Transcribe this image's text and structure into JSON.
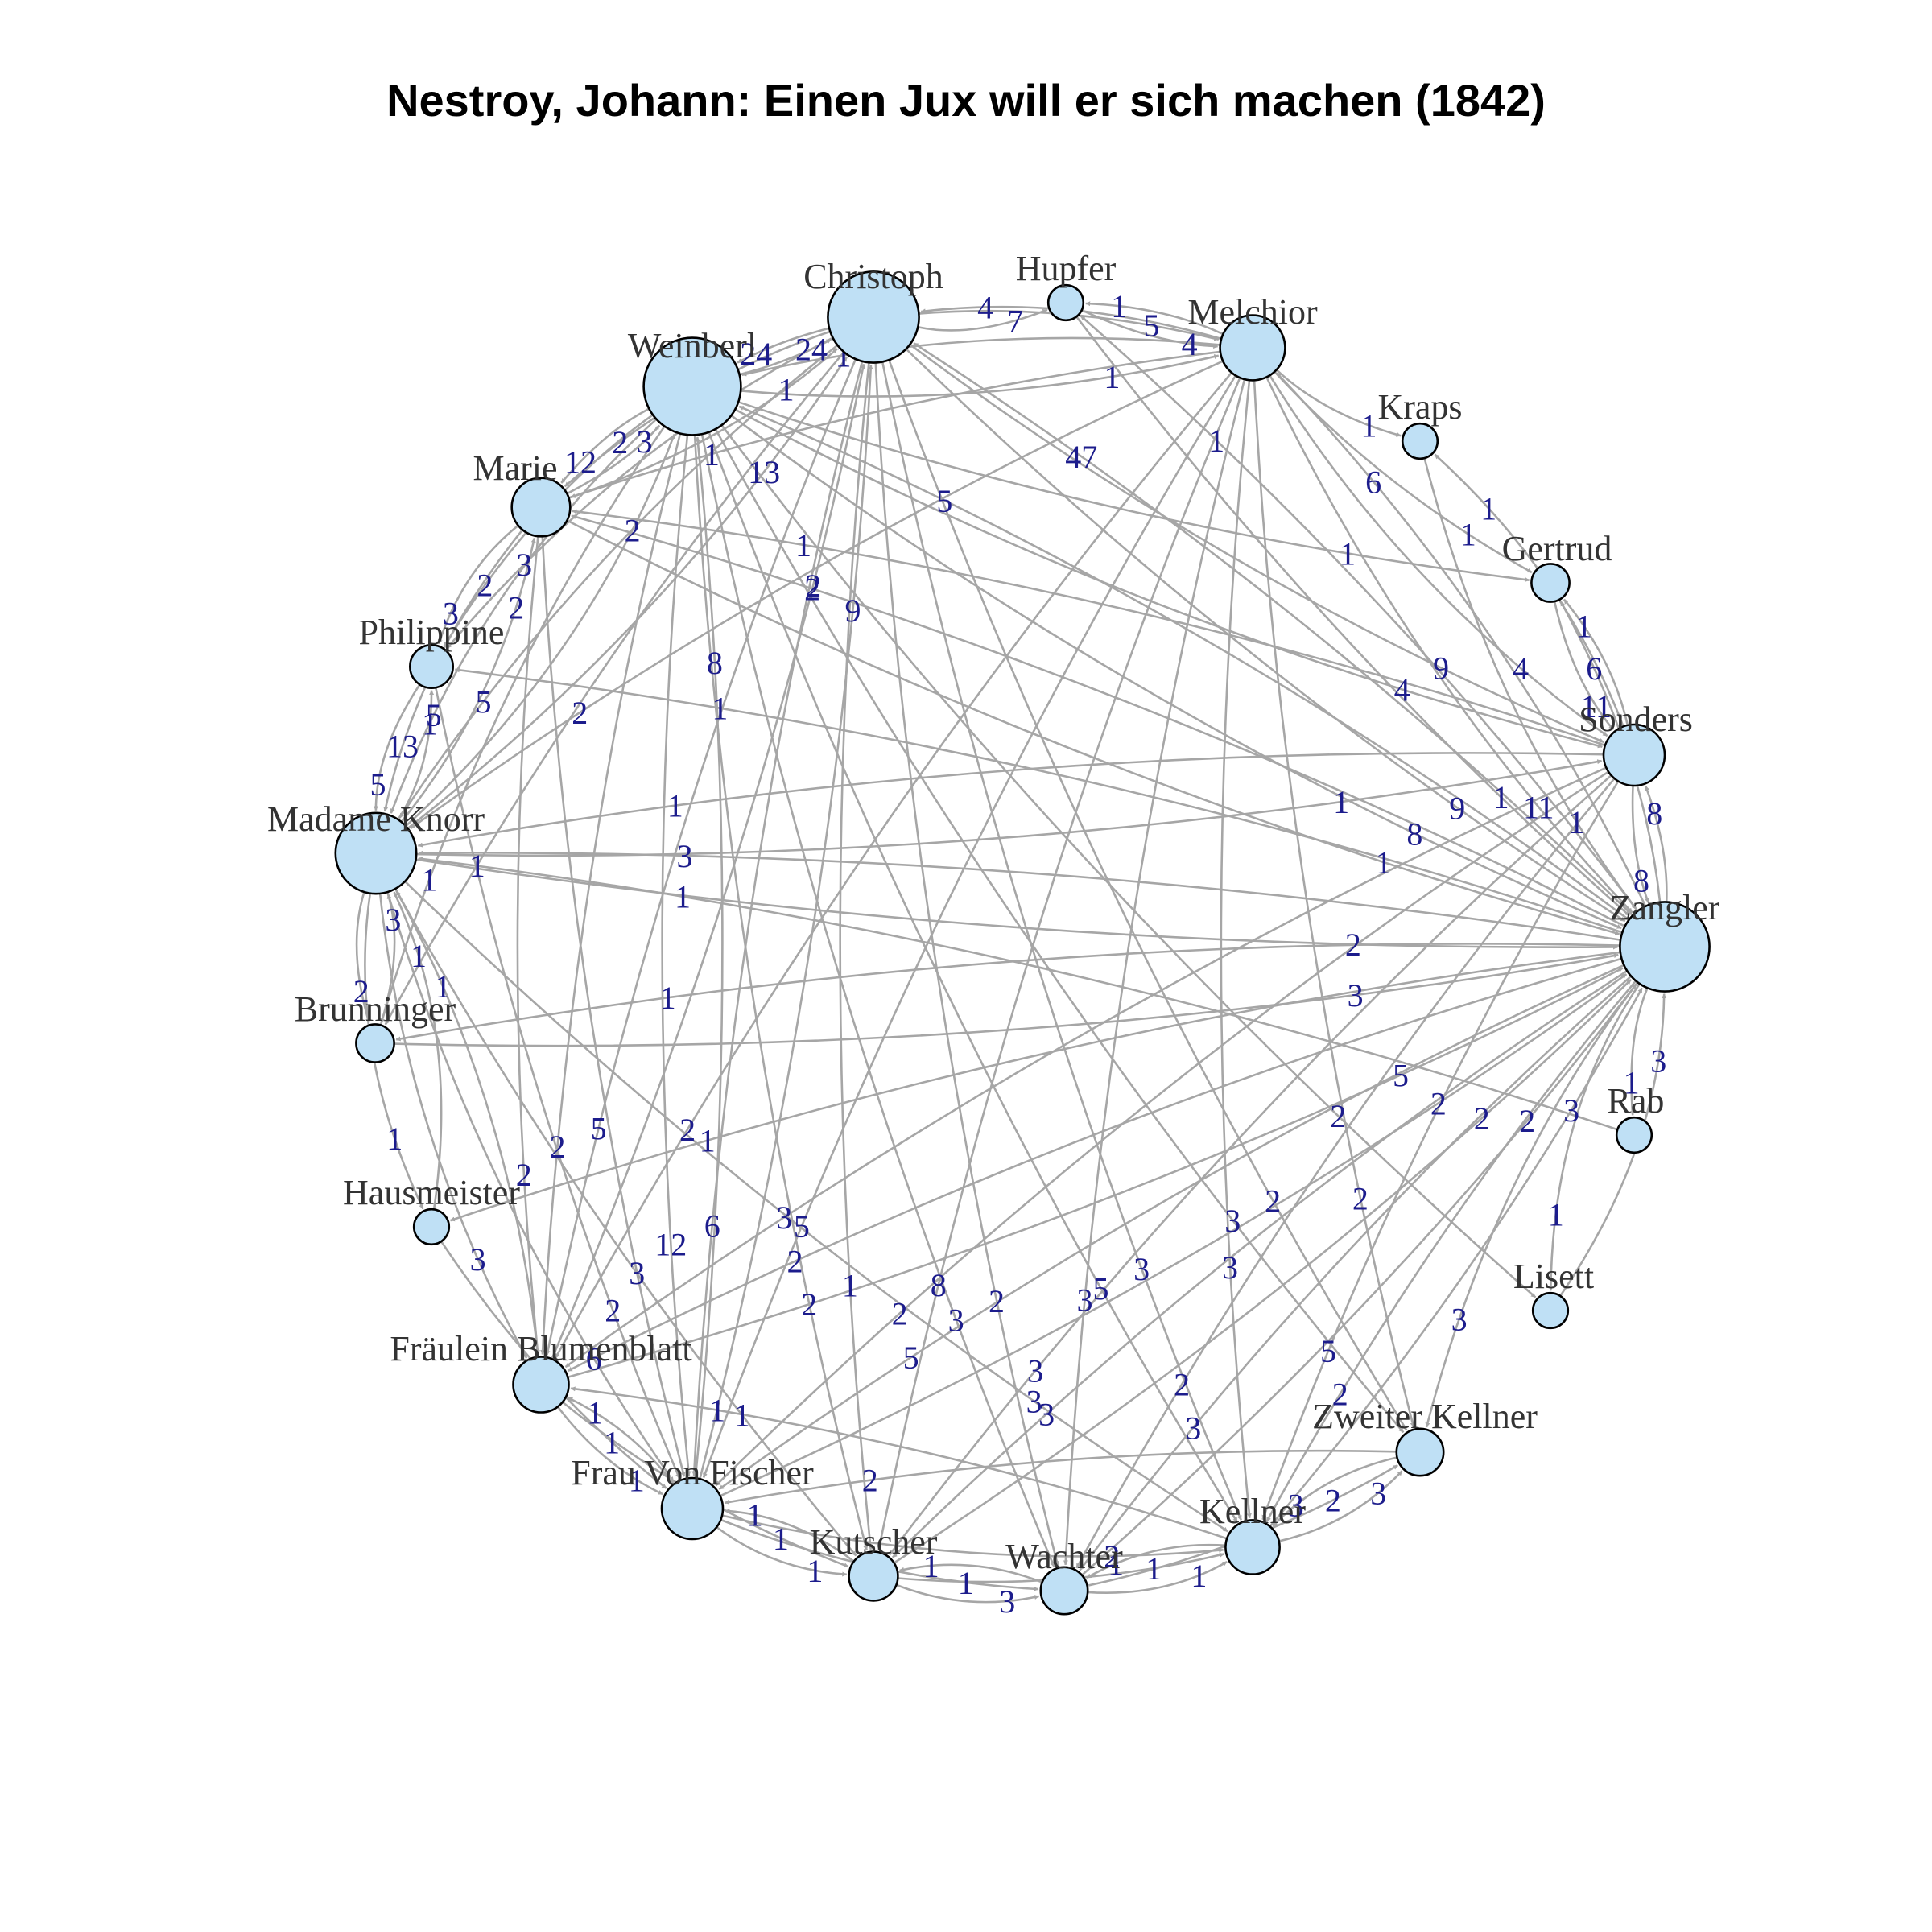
{
  "title": "Nestroy, Johann: Einen Jux will er sich machen (1842)",
  "colors": {
    "node_fill": "#bfe0f5",
    "edge": "#a6a6a6",
    "edge_label": "#1c1c8c",
    "node_label": "#333333"
  },
  "nodes": [
    {
      "id": "Christoph",
      "label": "Christoph",
      "degree": 47
    },
    {
      "id": "Hupfer",
      "label": "Hupfer",
      "degree": 3
    },
    {
      "id": "Melchior",
      "label": "Melchior",
      "degree": 20
    },
    {
      "id": "Kraps",
      "label": "Kraps",
      "degree": 3
    },
    {
      "id": "Gertrud",
      "label": "Gertrud",
      "degree": 4
    },
    {
      "id": "Sonders",
      "label": "Sonders",
      "degree": 17
    },
    {
      "id": "Zangler",
      "label": "Zangler",
      "degree": 45
    },
    {
      "id": "Rab",
      "label": "Rab",
      "degree": 3
    },
    {
      "id": "Lisett",
      "label": "Lisett",
      "degree": 3
    },
    {
      "id": "Zweiter Kellner",
      "label": "Zweiter Kellner",
      "degree": 8
    },
    {
      "id": "Kellner",
      "label": "Kellner",
      "degree": 12
    },
    {
      "id": "Wachter",
      "label": "Wachter",
      "degree": 8
    },
    {
      "id": "Kutscher",
      "label": "Kutscher",
      "degree": 9
    },
    {
      "id": "Frau Von Fischer",
      "label": "Frau Von Fischer",
      "degree": 17
    },
    {
      "id": "Fräulein Blumenblatt",
      "label": "Fräulein Blumenblatt",
      "degree": 13
    },
    {
      "id": "Hausmeister",
      "label": "Hausmeister",
      "degree": 3
    },
    {
      "id": "Brunninger",
      "label": "Brunninger",
      "degree": 4
    },
    {
      "id": "Madame Knorr",
      "label": "Madame Knorr",
      "degree": 35
    },
    {
      "id": "Philippine",
      "label": "Philippine",
      "degree": 6
    },
    {
      "id": "Marie",
      "label": "Marie",
      "degree": 15
    },
    {
      "id": "Weinberl",
      "label": "Weinberl",
      "degree": 55
    }
  ],
  "edges": [
    {
      "s": "Christoph",
      "t": "Weinberl",
      "w": 24,
      "c": 0.06
    },
    {
      "s": "Weinberl",
      "t": "Christoph",
      "w": 24,
      "c": 0.06
    },
    {
      "s": "Christoph",
      "t": "Melchior",
      "w": 5,
      "c": -0.08
    },
    {
      "s": "Melchior",
      "t": "Christoph",
      "w": 4,
      "c": 0.1
    },
    {
      "s": "Hupfer",
      "t": "Melchior",
      "w": 4,
      "c": 0.1
    },
    {
      "s": "Melchior",
      "t": "Hupfer",
      "w": 1,
      "c": 0.1
    },
    {
      "s": "Christoph",
      "t": "Hupfer",
      "w": 7,
      "c": 0.15
    },
    {
      "s": "Zangler",
      "t": "Christoph",
      "w": 47,
      "c": 0.05
    },
    {
      "s": "Christoph",
      "t": "Zangler",
      "w": 9,
      "c": 0.05
    },
    {
      "s": "Weinberl",
      "t": "Marie",
      "w": 12,
      "c": 0.1
    },
    {
      "s": "Marie",
      "t": "Weinberl",
      "w": 3,
      "c": 0.1
    },
    {
      "s": "Weinberl",
      "t": "Madame Knorr",
      "w": 5,
      "c": 0.12
    },
    {
      "s": "Madame Knorr",
      "t": "Weinberl",
      "w": 2,
      "c": 0.12
    },
    {
      "s": "Marie",
      "t": "Madame Knorr",
      "w": 13,
      "c": 0.12
    },
    {
      "s": "Madame Knorr",
      "t": "Marie",
      "w": 2,
      "c": 0.12
    },
    {
      "s": "Philippine",
      "t": "Madame Knorr",
      "w": 5,
      "c": 0.15
    },
    {
      "s": "Madame Knorr",
      "t": "Philippine",
      "w": 1,
      "c": 0.15
    },
    {
      "s": "Marie",
      "t": "Philippine",
      "w": 3,
      "c": 0.15
    },
    {
      "s": "Madame Knorr",
      "t": "Brunninger",
      "w": 2,
      "c": 0.15
    },
    {
      "s": "Brunninger",
      "t": "Madame Knorr",
      "w": 3,
      "c": 0.15
    },
    {
      "s": "Madame Knorr",
      "t": "Hausmeister",
      "w": 1,
      "c": 0.15
    },
    {
      "s": "Hausmeister",
      "t": "Madame Knorr",
      "w": 1,
      "c": 0.15
    },
    {
      "s": "Madame Knorr",
      "t": "Fräulein Blumenblatt",
      "w": 3,
      "c": 0.1
    },
    {
      "s": "Fräulein Blumenblatt",
      "t": "Madame Knorr",
      "w": 1,
      "c": 0.1
    },
    {
      "s": "Fräulein Blumenblatt",
      "t": "Frau Von Fischer",
      "w": 1,
      "c": 0.12
    },
    {
      "s": "Frau Von Fischer",
      "t": "Fräulein Blumenblatt",
      "w": 1,
      "c": 0.12
    },
    {
      "s": "Frau Von Fischer",
      "t": "Kutscher",
      "w": 1,
      "c": 0.15
    },
    {
      "s": "Kutscher",
      "t": "Frau Von Fischer",
      "w": 1,
      "c": 0.15
    },
    {
      "s": "Kutscher",
      "t": "Wachter",
      "w": 3,
      "c": 0.15
    },
    {
      "s": "Wachter",
      "t": "Kutscher",
      "w": 1,
      "c": 0.15
    },
    {
      "s": "Wachter",
      "t": "Kellner",
      "w": 1,
      "c": 0.15
    },
    {
      "s": "Kellner",
      "t": "Wachter",
      "w": 1,
      "c": 0.15
    },
    {
      "s": "Kellner",
      "t": "Zweiter Kellner",
      "w": 3,
      "c": 0.15
    },
    {
      "s": "Zweiter Kellner",
      "t": "Kellner",
      "w": 3,
      "c": 0.15
    },
    {
      "s": "Zangler",
      "t": "Zweiter Kellner",
      "w": 3,
      "c": 0.1
    },
    {
      "s": "Zangler",
      "t": "Lisett",
      "w": 1,
      "c": 0.15
    },
    {
      "s": "Lisett",
      "t": "Zangler",
      "w": 3,
      "c": 0.15
    },
    {
      "s": "Zangler",
      "t": "Rab",
      "w": 1,
      "c": 0.12
    },
    {
      "s": "Sonders",
      "t": "Zangler",
      "w": 8,
      "c": 0.1
    },
    {
      "s": "Zangler",
      "t": "Sonders",
      "w": 8,
      "c": 0.1
    },
    {
      "s": "Gertrud",
      "t": "Sonders",
      "w": 11,
      "c": 0.12
    },
    {
      "s": "Sonders",
      "t": "Gertrud",
      "w": 1,
      "c": 0.12
    },
    {
      "s": "Zangler",
      "t": "Gertrud",
      "w": 6,
      "c": 0.1
    },
    {
      "s": "Melchior",
      "t": "Kraps",
      "w": 1,
      "c": 0.12
    },
    {
      "s": "Kraps",
      "t": "Zangler",
      "w": 1,
      "c": 0.1
    },
    {
      "s": "Melchior",
      "t": "Sonders",
      "w": 4,
      "c": 0.1
    },
    {
      "s": "Melchior",
      "t": "Zangler",
      "w": 11,
      "c": 0.08
    },
    {
      "s": "Zangler",
      "t": "Melchior",
      "w": 6,
      "c": 0.08
    },
    {
      "s": "Weinberl",
      "t": "Melchior",
      "w": 1,
      "c": 0.08
    },
    {
      "s": "Melchior",
      "t": "Weinberl",
      "w": 1,
      "c": 0.08
    },
    {
      "s": "Weinberl",
      "t": "Zangler",
      "w": 8,
      "c": 0.06
    },
    {
      "s": "Zangler",
      "t": "Weinberl",
      "w": 5,
      "c": 0.06
    },
    {
      "s": "Weinberl",
      "t": "Sonders",
      "w": 4,
      "c": 0.06
    },
    {
      "s": "Christoph",
      "t": "Sonders",
      "w": 9,
      "c": 0.06
    },
    {
      "s": "Christoph",
      "t": "Madame Knorr",
      "w": 5,
      "c": 0.08
    },
    {
      "s": "Madame Knorr",
      "t": "Christoph",
      "w": 13,
      "c": 0.08
    },
    {
      "s": "Christoph",
      "t": "Marie",
      "w": 2,
      "c": 0.1
    },
    {
      "s": "Marie",
      "t": "Christoph",
      "w": 1,
      "c": 0.1
    },
    {
      "s": "Christoph",
      "t": "Philippine",
      "w": 3,
      "c": 0.1
    },
    {
      "s": "Christoph",
      "t": "Frau Von Fischer",
      "w": 6,
      "c": 0.05
    },
    {
      "s": "Frau Von Fischer",
      "t": "Christoph",
      "w": 9,
      "c": 0.05
    },
    {
      "s": "Christoph",
      "t": "Fräulein Blumenblatt",
      "w": 5,
      "c": 0.05
    },
    {
      "s": "Fräulein Blumenblatt",
      "t": "Christoph",
      "w": 2,
      "c": 0.05
    },
    {
      "s": "Christoph",
      "t": "Kutscher",
      "w": 1,
      "c": 0.05
    },
    {
      "s": "Christoph",
      "t": "Wachter",
      "w": 2,
      "c": 0.05
    },
    {
      "s": "Christoph",
      "t": "Kellner",
      "w": 3,
      "c": 0.05
    },
    {
      "s": "Christoph",
      "t": "Zweiter Kellner",
      "w": 2,
      "c": 0.05
    },
    {
      "s": "Christoph",
      "t": "Brunninger",
      "w": 1,
      "c": 0.05
    },
    {
      "s": "Weinberl",
      "t": "Frau Von Fischer",
      "w": 12,
      "c": 0.05
    },
    {
      "s": "Frau Von Fischer",
      "t": "Weinberl",
      "w": 8,
      "c": 0.05
    },
    {
      "s": "Weinberl",
      "t": "Fräulein Blumenblatt",
      "w": 2,
      "c": 0.05
    },
    {
      "s": "Weinberl",
      "t": "Kellner",
      "w": 5,
      "c": 0.05
    },
    {
      "s": "Weinberl",
      "t": "Wachter",
      "w": 3,
      "c": 0.05
    },
    {
      "s": "Weinberl",
      "t": "Kutscher",
      "w": 2,
      "c": 0.05
    },
    {
      "s": "Weinberl",
      "t": "Zweiter Kellner",
      "w": 3,
      "c": 0.05
    },
    {
      "s": "Weinberl",
      "t": "Philippine",
      "w": 2,
      "c": 0.1
    },
    {
      "s": "Weinberl",
      "t": "Brunninger",
      "w": 1,
      "c": 0.08
    },
    {
      "s": "Weinberl",
      "t": "Lisett",
      "w": 2,
      "c": 0.05
    },
    {
      "s": "Weinberl",
      "t": "Gertrud",
      "w": 1,
      "c": 0.05
    },
    {
      "s": "Zangler",
      "t": "Madame Knorr",
      "w": 3,
      "c": 0.04
    },
    {
      "s": "Madame Knorr",
      "t": "Zangler",
      "w": 2,
      "c": 0.04
    },
    {
      "s": "Zangler",
      "t": "Frau Von Fischer",
      "w": 5,
      "c": 0.05
    },
    {
      "s": "Frau Von Fischer",
      "t": "Zangler",
      "w": 2,
      "c": 0.05
    },
    {
      "s": "Zangler",
      "t": "Fräulein Blumenblatt",
      "w": 2,
      "c": 0.05
    },
    {
      "s": "Fräulein Blumenblatt",
      "t": "Zangler",
      "w": 5,
      "c": 0.05
    },
    {
      "s": "Zangler",
      "t": "Kutscher",
      "w": 3,
      "c": 0.05
    },
    {
      "s": "Kutscher",
      "t": "Zangler",
      "w": 2,
      "c": 0.05
    },
    {
      "s": "Zangler",
      "t": "Wachter",
      "w": 3,
      "c": 0.05
    },
    {
      "s": "Wachter",
      "t": "Zangler",
      "w": 2,
      "c": 0.05
    },
    {
      "s": "Zangler",
      "t": "Kellner",
      "w": 2,
      "c": 0.05
    },
    {
      "s": "Kellner",
      "t": "Zangler",
      "w": 3,
      "c": 0.05
    },
    {
      "s": "Zangler",
      "t": "Marie",
      "w": 2,
      "c": 0.05
    },
    {
      "s": "Marie",
      "t": "Zangler",
      "w": 1,
      "c": 0.05
    },
    {
      "s": "Zangler",
      "t": "Philippine",
      "w": 1,
      "c": 0.05
    },
    {
      "s": "Zangler",
      "t": "Hausmeister",
      "w": 1,
      "c": 0.05
    },
    {
      "s": "Zangler",
      "t": "Brunninger",
      "w": 1,
      "c": 0.05
    },
    {
      "s": "Zangler",
      "t": "Hupfer",
      "w": 1,
      "c": 0.05
    },
    {
      "s": "Sonders",
      "t": "Madame Knorr",
      "w": 1,
      "c": 0.05
    },
    {
      "s": "Sonders",
      "t": "Frau Von Fischer",
      "w": 2,
      "c": 0.05
    },
    {
      "s": "Sonders",
      "t": "Fräulein Blumenblatt",
      "w": 3,
      "c": 0.05
    },
    {
      "s": "Sonders",
      "t": "Kutscher",
      "w": 3,
      "c": 0.05
    },
    {
      "s": "Sonders",
      "t": "Wachter",
      "w": 2,
      "c": 0.05
    },
    {
      "s": "Sonders",
      "t": "Kellner",
      "w": 5,
      "c": 0.05
    },
    {
      "s": "Sonders",
      "t": "Marie",
      "w": 1,
      "c": 0.05
    },
    {
      "s": "Sonders",
      "t": "Kraps",
      "w": 1,
      "c": 0.12
    },
    {
      "s": "Melchior",
      "t": "Madame Knorr",
      "w": 2,
      "c": 0.05
    },
    {
      "s": "Melchior",
      "t": "Frau Von Fischer",
      "w": 5,
      "c": 0.05
    },
    {
      "s": "Melchior",
      "t": "Fräulein Blumenblatt",
      "w": 2,
      "c": 0.05
    },
    {
      "s": "Melchior",
      "t": "Kutscher",
      "w": 8,
      "c": 0.05
    },
    {
      "s": "Melchior",
      "t": "Wachter",
      "w": 3,
      "c": 0.05
    },
    {
      "s": "Melchior",
      "t": "Kellner",
      "w": 3,
      "c": 0.05
    },
    {
      "s": "Melchior",
      "t": "Zweiter Kellner",
      "w": 2,
      "c": 0.05
    },
    {
      "s": "Melchior",
      "t": "Marie",
      "w": 1,
      "c": 0.05
    },
    {
      "s": "Melchior",
      "t": "Gertrud",
      "w": 1,
      "c": 0.08
    },
    {
      "s": "Madame Knorr",
      "t": "Frau Von Fischer",
      "w": 6,
      "c": 0.08
    },
    {
      "s": "Madame Knorr",
      "t": "Kellner",
      "w": 3,
      "c": 0.05
    },
    {
      "s": "Madame Knorr",
      "t": "Kutscher",
      "w": 1,
      "c": 0.05
    },
    {
      "s": "Madame Knorr",
      "t": "Sonders",
      "w": 1,
      "c": 0.05
    },
    {
      "s": "Marie",
      "t": "Frau Von Fischer",
      "w": 3,
      "c": 0.05
    },
    {
      "s": "Marie",
      "t": "Fräulein Blumenblatt",
      "w": 2,
      "c": 0.05
    },
    {
      "s": "Philippine",
      "t": "Frau Von Fischer",
      "w": 2,
      "c": 0.05
    },
    {
      "s": "Kutscher",
      "t": "Kellner",
      "w": 1,
      "c": 0.08
    },
    {
      "s": "Frau Von Fischer",
      "t": "Wachter",
      "w": 1,
      "c": 0.08
    },
    {
      "s": "Frau Von Fischer",
      "t": "Kellner",
      "w": 2,
      "c": 0.08
    },
    {
      "s": "Fräulein Blumenblatt",
      "t": "Kutscher",
      "w": 1,
      "c": 0.08
    },
    {
      "s": "Kellner",
      "t": "Fräulein Blumenblatt",
      "w": 1,
      "c": 0.05
    },
    {
      "s": "Zweiter Kellner",
      "t": "Frau Von Fischer",
      "w": 2,
      "c": 0.05
    },
    {
      "s": "Wachter",
      "t": "Zweiter Kellner",
      "w": 2,
      "c": 0.08
    },
    {
      "s": "Hupfer",
      "t": "Zangler",
      "w": 1,
      "c": 0.05
    },
    {
      "s": "Rab",
      "t": "Madame Knorr",
      "w": 1,
      "c": 0.05
    },
    {
      "s": "Brunninger",
      "t": "Zangler",
      "w": 3,
      "c": 0.05
    },
    {
      "s": "Hausmeister",
      "t": "Frau Von Fischer",
      "w": 1,
      "c": 0.08
    }
  ]
}
